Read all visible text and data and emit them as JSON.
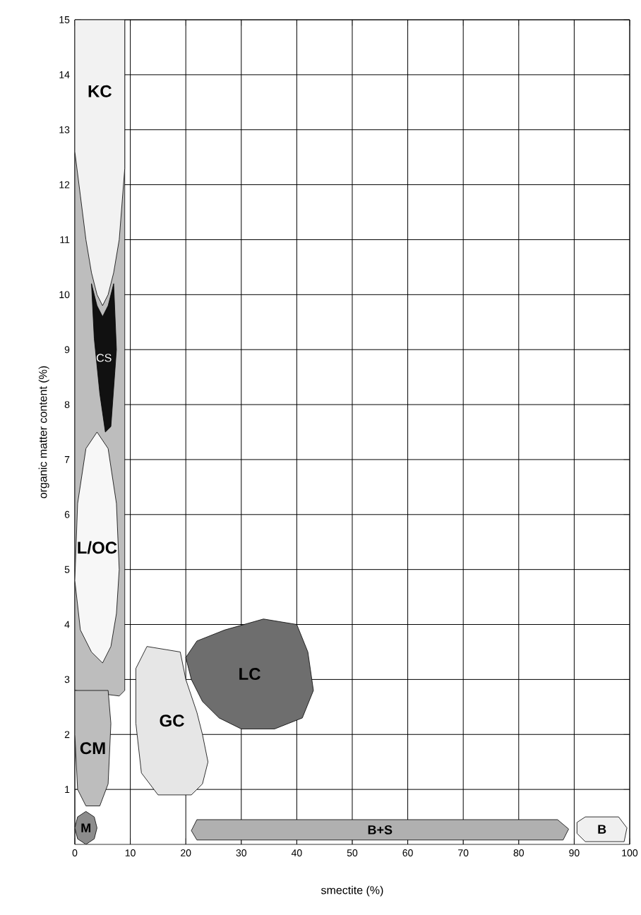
{
  "chart_data": {
    "type": "area",
    "xlabel": "smectite (%)",
    "ylabel": "organic matter content (%)",
    "xlim": [
      0,
      100
    ],
    "ylim": [
      0,
      15
    ],
    "xticks": [
      0,
      10,
      20,
      30,
      40,
      50,
      60,
      70,
      80,
      90,
      100
    ],
    "yticks": [
      1,
      2,
      3,
      4,
      5,
      6,
      7,
      8,
      9,
      10,
      11,
      12,
      13,
      14,
      15
    ],
    "grid": true,
    "series": [
      {
        "color": "#bdbdbd",
        "x": [
          0,
          9,
          9,
          8,
          0
        ],
        "values": [
          15,
          15,
          2.8,
          2.7,
          2.8
        ]
      },
      {
        "name": "KC",
        "color": "#f2f2f2",
        "x": [
          0,
          9,
          9,
          8,
          7,
          6,
          5,
          4,
          3,
          2,
          1,
          0
        ],
        "values": [
          15,
          15,
          12.3,
          11,
          10.4,
          10.0,
          9.8,
          10.0,
          10.4,
          11.0,
          11.8,
          12.6
        ]
      },
      {
        "name": "CS",
        "color": "#111111",
        "x": [
          3,
          4,
          5,
          6,
          7,
          7.5,
          6.5,
          5.5,
          4.5,
          3.5
        ],
        "values": [
          10.2,
          9.8,
          9.6,
          9.8,
          10.2,
          9.0,
          7.6,
          7.5,
          8.2,
          9.2
        ]
      },
      {
        "name": "L/OC",
        "color": "#f7f7f7",
        "x": [
          4,
          6,
          7.5,
          8,
          7.5,
          6.5,
          5,
          3,
          1,
          0,
          0.5,
          2
        ],
        "values": [
          7.5,
          7.2,
          6.2,
          5.0,
          4.2,
          3.6,
          3.3,
          3.5,
          3.9,
          4.8,
          6.2,
          7.2
        ]
      },
      {
        "name": "CM",
        "color": "#bdbdbd",
        "x": [
          0,
          6,
          6.5,
          6,
          4.5,
          2,
          0.5,
          0
        ],
        "values": [
          2.8,
          2.8,
          2.2,
          1.1,
          0.7,
          0.7,
          1.0,
          2.0
        ]
      },
      {
        "name": "M",
        "color": "#8c8c8c",
        "x": [
          2,
          3.5,
          4,
          3.5,
          2,
          0.5,
          0,
          0.5
        ],
        "values": [
          0.6,
          0.5,
          0.3,
          0.1,
          0.0,
          0.1,
          0.3,
          0.5
        ]
      },
      {
        "name": "GC",
        "color": "#e6e6e6",
        "x": [
          13,
          19,
          20,
          22,
          23,
          24,
          23,
          21,
          15,
          12,
          11,
          11
        ],
        "values": [
          3.6,
          3.5,
          3.0,
          2.4,
          2.0,
          1.5,
          1.1,
          0.9,
          0.9,
          1.3,
          2.2,
          3.2
        ]
      },
      {
        "name": "LC",
        "color": "#6e6e6e",
        "x": [
          27,
          34,
          40,
          42,
          43,
          41,
          36,
          30,
          26,
          23,
          21,
          20,
          22
        ],
        "values": [
          3.9,
          4.1,
          4.0,
          3.5,
          2.8,
          2.3,
          2.1,
          2.1,
          2.3,
          2.6,
          3.0,
          3.4,
          3.7
        ]
      },
      {
        "name": "B+S",
        "color": "#b0b0b0",
        "x": [
          22,
          50,
          87,
          89,
          88,
          50,
          22,
          21
        ],
        "values": [
          0.45,
          0.45,
          0.45,
          0.28,
          0.08,
          0.08,
          0.08,
          0.25
        ]
      },
      {
        "name": "B",
        "color": "#f0f0f0",
        "x": [
          92,
          98,
          99.5,
          99,
          92,
          90.5,
          90.5
        ],
        "values": [
          0.5,
          0.5,
          0.3,
          0.05,
          0.05,
          0.2,
          0.4
        ]
      }
    ]
  }
}
